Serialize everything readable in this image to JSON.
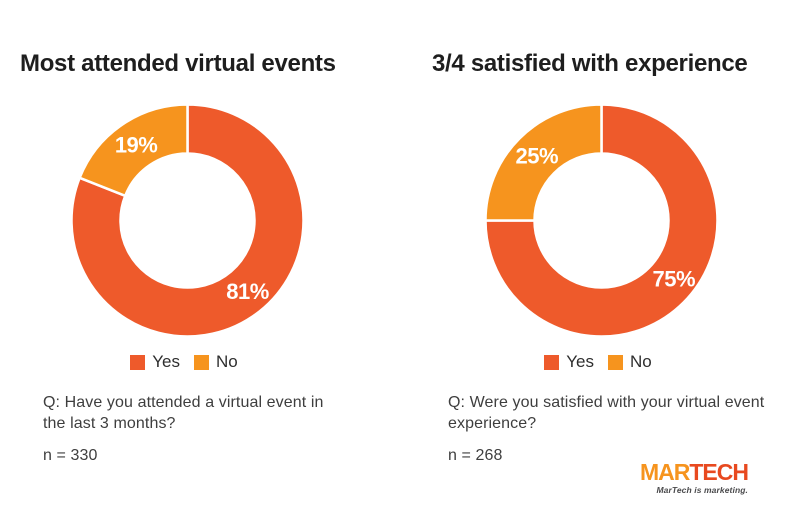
{
  "page": {
    "background_color": "#FFFFFF"
  },
  "chart_data": [
    {
      "type": "pie",
      "subtype": "donut",
      "title": "Most attended virtual events",
      "labels": [
        "Yes",
        "No"
      ],
      "values": [
        81,
        19
      ],
      "unit": "%",
      "colors": [
        "#EE5A2B",
        "#F6941E"
      ],
      "value_label_color": "#FFFFFF",
      "legend_position": "bottom",
      "question": "Q: Have you attended a virtual event in the last 3 months?",
      "sample": "n = 330"
    },
    {
      "type": "pie",
      "subtype": "donut",
      "title": "3/4 satisfied with experience",
      "labels": [
        "Yes",
        "No"
      ],
      "values": [
        75,
        25
      ],
      "unit": "%",
      "colors": [
        "#EE5A2B",
        "#F6941E"
      ],
      "value_label_color": "#FFFFFF",
      "legend_position": "bottom",
      "question": "Q: Were you satisfied with your virtual event experience?",
      "sample": "n = 268"
    }
  ],
  "logo": {
    "text_primary": "MAR",
    "text_secondary": "TECH",
    "color_primary": "#F6941E",
    "color_secondary": "#E8491F",
    "tagline": "MarTech is marketing.",
    "tagline_color": "#4A4A4C"
  }
}
